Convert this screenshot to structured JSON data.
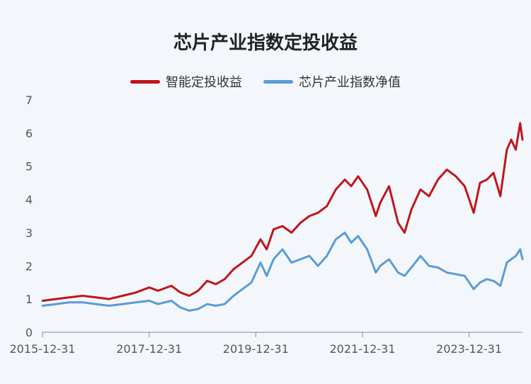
{
  "chart_data": {
    "type": "line",
    "title": "芯片产业指数定投收益",
    "xlabel": "",
    "ylabel": "",
    "ylim": [
      0,
      7
    ],
    "yticks": [
      "0",
      "1",
      "2",
      "3",
      "4",
      "5",
      "6",
      "7"
    ],
    "xticks": [
      "2015-12-31",
      "2017-12-31",
      "2019-12-31",
      "2021-12-31",
      "2023-12-31"
    ],
    "xlim": [
      "2015-12-31",
      "2024-12-31"
    ],
    "grid": false,
    "legend_position": "top",
    "series": [
      {
        "name": "智能定投收益",
        "color": "#c0151b",
        "points": [
          [
            "2016-01-01",
            0.95
          ],
          [
            "2016-04-01",
            1.0
          ],
          [
            "2016-07-01",
            1.05
          ],
          [
            "2016-10-01",
            1.1
          ],
          [
            "2017-01-01",
            1.05
          ],
          [
            "2017-04-01",
            1.0
          ],
          [
            "2017-07-01",
            1.1
          ],
          [
            "2017-10-01",
            1.2
          ],
          [
            "2018-01-01",
            1.35
          ],
          [
            "2018-03-01",
            1.25
          ],
          [
            "2018-06-01",
            1.4
          ],
          [
            "2018-08-01",
            1.2
          ],
          [
            "2018-10-01",
            1.1
          ],
          [
            "2018-12-01",
            1.25
          ],
          [
            "2019-02-01",
            1.55
          ],
          [
            "2019-04-01",
            1.45
          ],
          [
            "2019-06-01",
            1.6
          ],
          [
            "2019-08-01",
            1.9
          ],
          [
            "2019-10-01",
            2.1
          ],
          [
            "2019-12-01",
            2.3
          ],
          [
            "2020-02-01",
            2.8
          ],
          [
            "2020-03-15",
            2.5
          ],
          [
            "2020-05-01",
            3.1
          ],
          [
            "2020-07-01",
            3.2
          ],
          [
            "2020-09-01",
            3.0
          ],
          [
            "2020-11-01",
            3.3
          ],
          [
            "2021-01-01",
            3.5
          ],
          [
            "2021-03-01",
            3.6
          ],
          [
            "2021-05-01",
            3.8
          ],
          [
            "2021-07-01",
            4.3
          ],
          [
            "2021-09-01",
            4.6
          ],
          [
            "2021-10-15",
            4.4
          ],
          [
            "2021-12-01",
            4.7
          ],
          [
            "2022-02-01",
            4.3
          ],
          [
            "2022-04-01",
            3.5
          ],
          [
            "2022-05-01",
            3.9
          ],
          [
            "2022-07-01",
            4.4
          ],
          [
            "2022-09-01",
            3.3
          ],
          [
            "2022-10-15",
            3.0
          ],
          [
            "2022-12-01",
            3.7
          ],
          [
            "2023-02-01",
            4.3
          ],
          [
            "2023-04-01",
            4.1
          ],
          [
            "2023-06-01",
            4.6
          ],
          [
            "2023-08-01",
            4.9
          ],
          [
            "2023-10-01",
            4.7
          ],
          [
            "2023-12-01",
            4.4
          ],
          [
            "2024-02-01",
            3.6
          ],
          [
            "2024-03-15",
            4.5
          ],
          [
            "2024-05-01",
            4.6
          ],
          [
            "2024-06-15",
            4.8
          ],
          [
            "2024-08-01",
            4.1
          ],
          [
            "2024-09-15",
            5.5
          ],
          [
            "2024-10-15",
            5.8
          ],
          [
            "2024-11-15",
            5.5
          ],
          [
            "2024-12-15",
            6.3
          ],
          [
            "2024-12-31",
            5.8
          ]
        ]
      },
      {
        "name": "芯片产业指数净值",
        "color": "#5b9bd5",
        "points": [
          [
            "2016-01-01",
            0.8
          ],
          [
            "2016-04-01",
            0.85
          ],
          [
            "2016-07-01",
            0.9
          ],
          [
            "2016-10-01",
            0.9
          ],
          [
            "2017-01-01",
            0.85
          ],
          [
            "2017-04-01",
            0.8
          ],
          [
            "2017-07-01",
            0.85
          ],
          [
            "2017-10-01",
            0.9
          ],
          [
            "2018-01-01",
            0.95
          ],
          [
            "2018-03-01",
            0.85
          ],
          [
            "2018-06-01",
            0.95
          ],
          [
            "2018-08-01",
            0.75
          ],
          [
            "2018-10-01",
            0.65
          ],
          [
            "2018-12-01",
            0.7
          ],
          [
            "2019-02-01",
            0.85
          ],
          [
            "2019-04-01",
            0.8
          ],
          [
            "2019-06-01",
            0.85
          ],
          [
            "2019-08-01",
            1.1
          ],
          [
            "2019-10-01",
            1.3
          ],
          [
            "2019-12-01",
            1.5
          ],
          [
            "2020-02-01",
            2.1
          ],
          [
            "2020-03-15",
            1.7
          ],
          [
            "2020-05-01",
            2.2
          ],
          [
            "2020-07-01",
            2.5
          ],
          [
            "2020-09-01",
            2.1
          ],
          [
            "2020-11-01",
            2.2
          ],
          [
            "2021-01-01",
            2.3
          ],
          [
            "2021-03-01",
            2.0
          ],
          [
            "2021-05-01",
            2.3
          ],
          [
            "2021-07-01",
            2.8
          ],
          [
            "2021-09-01",
            3.0
          ],
          [
            "2021-10-15",
            2.7
          ],
          [
            "2021-12-01",
            2.9
          ],
          [
            "2022-02-01",
            2.5
          ],
          [
            "2022-04-01",
            1.8
          ],
          [
            "2022-05-01",
            2.0
          ],
          [
            "2022-07-01",
            2.2
          ],
          [
            "2022-09-01",
            1.8
          ],
          [
            "2022-10-15",
            1.7
          ],
          [
            "2022-12-01",
            1.95
          ],
          [
            "2023-02-01",
            2.3
          ],
          [
            "2023-04-01",
            2.0
          ],
          [
            "2023-06-01",
            1.95
          ],
          [
            "2023-08-01",
            1.8
          ],
          [
            "2023-10-01",
            1.75
          ],
          [
            "2023-12-01",
            1.7
          ],
          [
            "2024-02-01",
            1.3
          ],
          [
            "2024-03-15",
            1.5
          ],
          [
            "2024-05-01",
            1.6
          ],
          [
            "2024-06-15",
            1.55
          ],
          [
            "2024-08-01",
            1.4
          ],
          [
            "2024-09-15",
            2.1
          ],
          [
            "2024-10-15",
            2.2
          ],
          [
            "2024-11-15",
            2.3
          ],
          [
            "2024-12-15",
            2.5
          ],
          [
            "2024-12-31",
            2.2
          ]
        ]
      }
    ]
  }
}
